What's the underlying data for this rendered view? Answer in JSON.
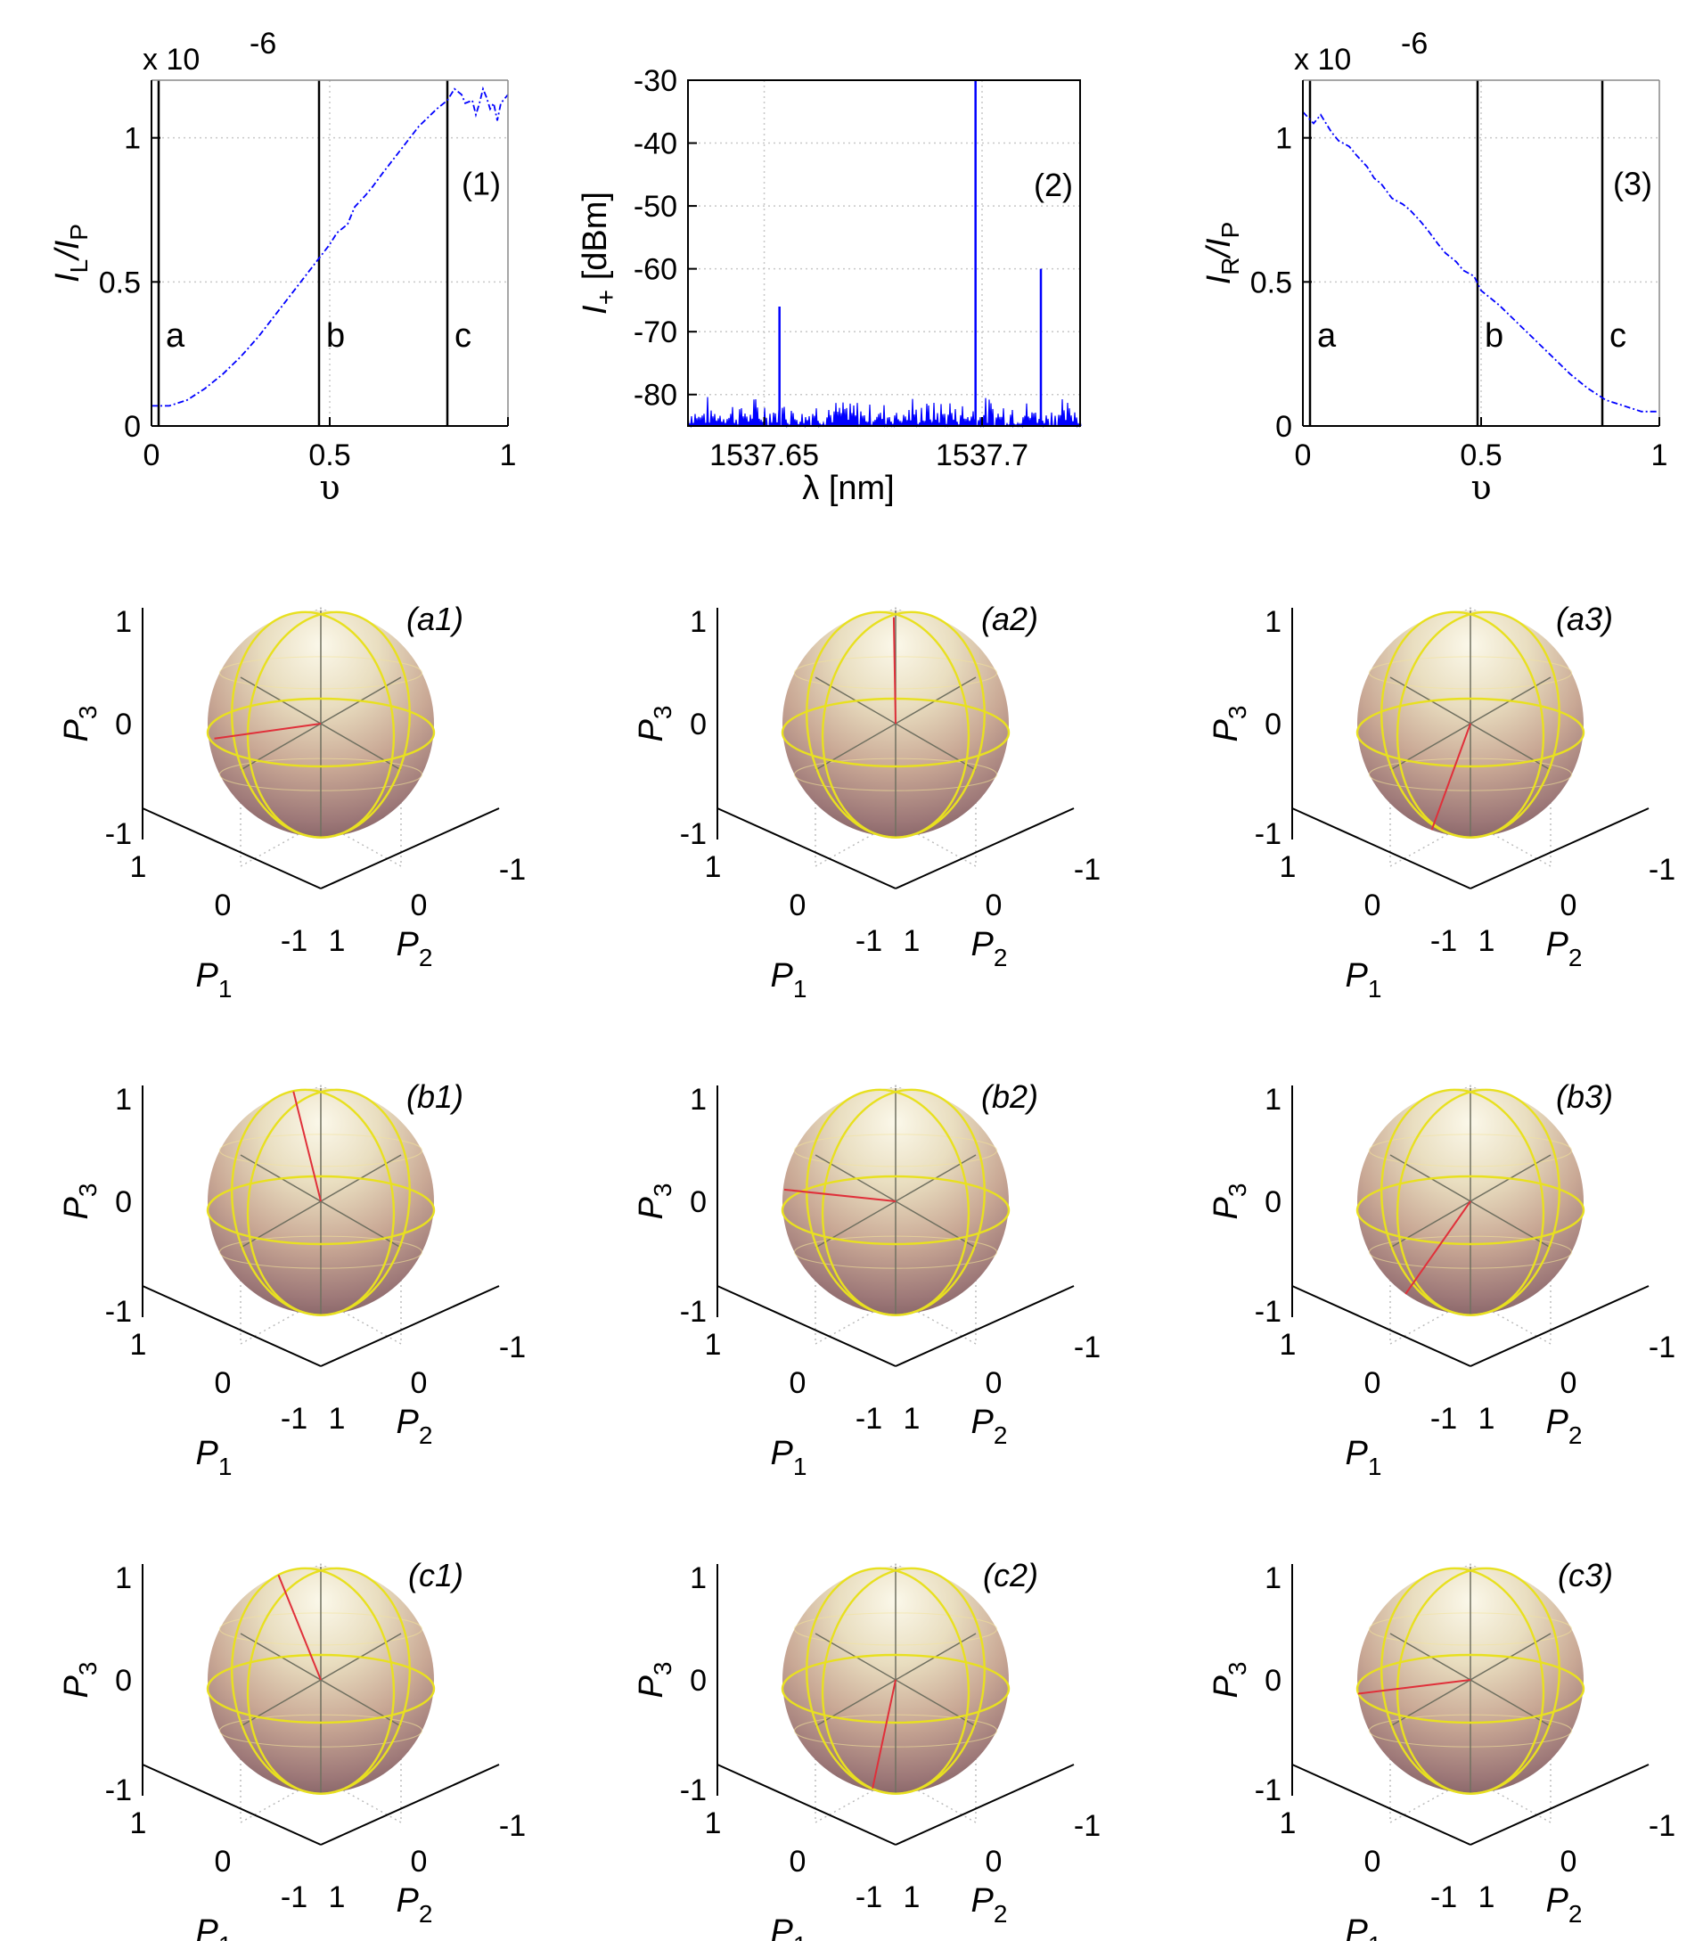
{
  "chart_data": [
    {
      "id": "plot1",
      "type": "line",
      "tag": "(1)",
      "exponent": "x 10",
      "exponent_power": "-6",
      "ylabel": {
        "main": "I",
        "sub1": "L",
        "mid": "/I",
        "sub2": "P"
      },
      "xlabel": "υ",
      "xlim": [
        0,
        1
      ],
      "ylim": [
        0,
        1.2
      ],
      "xticks": [
        "0",
        "0.5",
        "1"
      ],
      "yticks": [
        "0",
        "0.5",
        "1"
      ],
      "grid": true,
      "color": "#0000ff",
      "markers": [
        {
          "x": 0.02,
          "label": "a"
        },
        {
          "x": 0.47,
          "label": "b"
        },
        {
          "x": 0.83,
          "label": "c"
        }
      ],
      "series": [
        {
          "x": [
            0,
            0.05,
            0.1,
            0.15,
            0.2,
            0.25,
            0.3,
            0.35,
            0.4,
            0.45,
            0.5,
            0.52,
            0.55,
            0.57,
            0.6,
            0.62,
            0.65,
            0.7,
            0.75,
            0.8,
            0.83,
            0.85,
            0.87,
            0.88,
            0.9,
            0.91,
            0.92,
            0.93,
            0.94,
            0.95,
            0.96,
            0.97,
            0.98,
            1.0
          ],
          "y": [
            0.07,
            0.07,
            0.09,
            0.13,
            0.18,
            0.24,
            0.31,
            0.39,
            0.47,
            0.55,
            0.63,
            0.67,
            0.7,
            0.76,
            0.8,
            0.83,
            0.88,
            0.96,
            1.04,
            1.1,
            1.13,
            1.17,
            1.15,
            1.12,
            1.13,
            1.08,
            1.12,
            1.17,
            1.14,
            1.1,
            1.12,
            1.06,
            1.12,
            1.15
          ]
        }
      ]
    },
    {
      "id": "plot2",
      "type": "line",
      "tag": "(2)",
      "ylabel": {
        "main": "I",
        "sub1": "+",
        "rest": " [dBm]"
      },
      "xlabel": "λ [nm]",
      "xlim": [
        1537.6325,
        1537.7225
      ],
      "ylim": [
        -85,
        -30
      ],
      "xticks": [
        "1537.65",
        "1537.7"
      ],
      "xtick_values": [
        1537.65,
        1537.7
      ],
      "yticks": [
        "-30",
        "-40",
        "-50",
        "-60",
        "-70",
        "-80"
      ],
      "ytick_values": [
        -30,
        -40,
        -50,
        -60,
        -70,
        -80
      ],
      "grid": true,
      "color": "#0000ff",
      "noise_floor": [
        -85,
        -80
      ],
      "peaks": [
        {
          "x": 1537.6535,
          "y": -66
        },
        {
          "x": 1537.6985,
          "y": -30
        },
        {
          "x": 1537.7135,
          "y": -60
        }
      ]
    },
    {
      "id": "plot3",
      "type": "line",
      "tag": "(3)",
      "exponent": "x 10",
      "exponent_power": "-6",
      "ylabel": {
        "main": "I",
        "sub1": "R",
        "mid": "/I",
        "sub2": "P"
      },
      "xlabel": "υ",
      "xlim": [
        0,
        1
      ],
      "ylim": [
        0,
        1.2
      ],
      "xticks": [
        "0",
        "0.5",
        "1"
      ],
      "yticks": [
        "0",
        "0.5",
        "1"
      ],
      "grid": true,
      "color": "#0000ff",
      "markers": [
        {
          "x": 0.02,
          "label": "a"
        },
        {
          "x": 0.49,
          "label": "b"
        },
        {
          "x": 0.84,
          "label": "c"
        }
      ],
      "series": [
        {
          "x": [
            0,
            0.03,
            0.05,
            0.08,
            0.1,
            0.13,
            0.15,
            0.18,
            0.2,
            0.22,
            0.25,
            0.28,
            0.3,
            0.33,
            0.35,
            0.38,
            0.4,
            0.43,
            0.45,
            0.48,
            0.5,
            0.55,
            0.6,
            0.65,
            0.7,
            0.75,
            0.8,
            0.85,
            0.9,
            0.95,
            1.0
          ],
          "y": [
            1.09,
            1.05,
            1.08,
            1.02,
            0.99,
            0.97,
            0.94,
            0.9,
            0.86,
            0.84,
            0.79,
            0.77,
            0.75,
            0.71,
            0.68,
            0.63,
            0.6,
            0.57,
            0.54,
            0.52,
            0.47,
            0.42,
            0.36,
            0.3,
            0.24,
            0.18,
            0.13,
            0.09,
            0.07,
            0.05,
            0.05
          ]
        }
      ]
    },
    {
      "id": "spheres",
      "type": "sphere",
      "axis_labels": {
        "p1": "P",
        "p1_sub": "1",
        "p2": "P",
        "p2_sub": "2",
        "p3": "P",
        "p3_sub": "3"
      },
      "ticks": {
        "p3": [
          "1",
          "0",
          "-1"
        ],
        "p1": [
          "1",
          "0",
          "-1"
        ],
        "p2": [
          "1",
          "0",
          "-1"
        ]
      },
      "colors": {
        "wire": "#e8e020",
        "vector": "#e0303a",
        "axes": "#707060"
      },
      "panels": [
        {
          "tag": "(a1)",
          "vector_angle": 188,
          "vector_length": 0.95
        },
        {
          "tag": "(a2)",
          "vector_angle": 91,
          "vector_length": 0.94
        },
        {
          "tag": "(a3)",
          "vector_angle": 250,
          "vector_length": 1.0
        },
        {
          "tag": "(b1)",
          "vector_angle": 104,
          "vector_length": 1.0
        },
        {
          "tag": "(b2)",
          "vector_angle": 174,
          "vector_length": 0.99
        },
        {
          "tag": "(b3)",
          "vector_angle": 235,
          "vector_length": 1.0
        },
        {
          "tag": "(c1)",
          "vector_angle": 112,
          "vector_length": 1.0
        },
        {
          "tag": "(c2)",
          "vector_angle": 258,
          "vector_length": 0.98
        },
        {
          "tag": "(c3)",
          "vector_angle": 187,
          "vector_length": 1.0
        }
      ]
    }
  ]
}
